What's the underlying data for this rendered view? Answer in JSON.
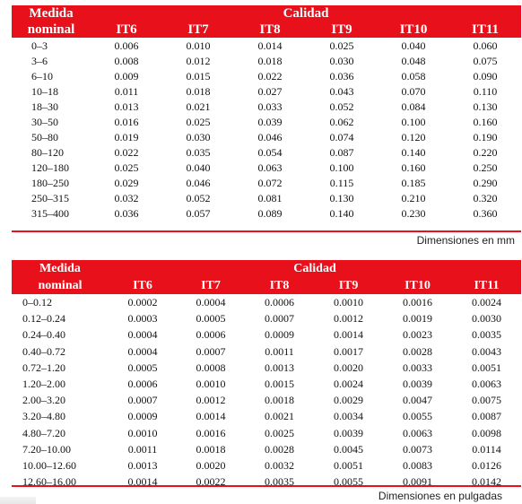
{
  "mm_table": {
    "header_medida": "Medida",
    "header_nominal": "nominal",
    "header_calidad": "Calidad",
    "grades": [
      "IT6",
      "IT7",
      "IT8",
      "IT9",
      "IT10",
      "IT11"
    ],
    "rows": [
      [
        "0–3",
        "0.006",
        "0.010",
        "0.014",
        "0.025",
        "0.040",
        "0.060"
      ],
      [
        "3–6",
        "0.008",
        "0.012",
        "0.018",
        "0.030",
        "0.048",
        "0.075"
      ],
      [
        "6–10",
        "0.009",
        "0.015",
        "0.022",
        "0.036",
        "0.058",
        "0.090"
      ],
      [
        "10–18",
        "0.011",
        "0.018",
        "0.027",
        "0.043",
        "0.070",
        "0.110"
      ],
      [
        "18–30",
        "0.013",
        "0.021",
        "0.033",
        "0.052",
        "0.084",
        "0.130"
      ],
      [
        "30–50",
        "0.016",
        "0.025",
        "0.039",
        "0.062",
        "0.100",
        "0.160"
      ],
      [
        "50–80",
        "0.019",
        "0.030",
        "0.046",
        "0.074",
        "0.120",
        "0.190"
      ],
      [
        "80–120",
        "0.022",
        "0.035",
        "0.054",
        "0.087",
        "0.140",
        "0.220"
      ],
      [
        "120–180",
        "0.025",
        "0.040",
        "0.063",
        "0.100",
        "0.160",
        "0.250"
      ],
      [
        "180–250",
        "0.029",
        "0.046",
        "0.072",
        "0.115",
        "0.185",
        "0.290"
      ],
      [
        "250–315",
        "0.032",
        "0.052",
        "0.081",
        "0.130",
        "0.210",
        "0.320"
      ],
      [
        "315–400",
        "0.036",
        "0.057",
        "0.089",
        "0.140",
        "0.230",
        "0.360"
      ]
    ],
    "units_caption": "Dimensiones en mm"
  },
  "in_table": {
    "header_medida": "Medida",
    "header_nominal": "nominal",
    "header_calidad": "Calidad",
    "grades": [
      "IT6",
      "IT7",
      "IT8",
      "IT9",
      "IT10",
      "IT11"
    ],
    "rows": [
      [
        "0–0.12",
        "0.0002",
        "0.0004",
        "0.0006",
        "0.0010",
        "0.0016",
        "0.0024"
      ],
      [
        "0.12–0.24",
        "0.0003",
        "0.0005",
        "0.0007",
        "0.0012",
        "0.0019",
        "0.0030"
      ],
      [
        "0.24–0.40",
        "0.0004",
        "0.0006",
        "0.0009",
        "0.0014",
        "0.0023",
        "0.0035"
      ],
      [
        "0.40–0.72",
        "0.0004",
        "0.0007",
        "0.0011",
        "0.0017",
        "0.0028",
        "0.0043"
      ],
      [
        "0.72–1.20",
        "0.0005",
        "0.0008",
        "0.0013",
        "0.0020",
        "0.0033",
        "0.0051"
      ],
      [
        "1.20–2.00",
        "0.0006",
        "0.0010",
        "0.0015",
        "0.0024",
        "0.0039",
        "0.0063"
      ],
      [
        "2.00–3.20",
        "0.0007",
        "0.0012",
        "0.0018",
        "0.0029",
        "0.0047",
        "0.0075"
      ],
      [
        "3.20–4.80",
        "0.0009",
        "0.0014",
        "0.0021",
        "0.0034",
        "0.0055",
        "0.0087"
      ],
      [
        "4.80–7.20",
        "0.0010",
        "0.0016",
        "0.0025",
        "0.0039",
        "0.0063",
        "0.0098"
      ],
      [
        "7.20–10.00",
        "0.0011",
        "0.0018",
        "0.0028",
        "0.0045",
        "0.0073",
        "0.0114"
      ],
      [
        "10.00–12.60",
        "0.0013",
        "0.0020",
        "0.0032",
        "0.0051",
        "0.0083",
        "0.0126"
      ],
      [
        "12.60–16.00",
        "0.0014",
        "0.0022",
        "0.0035",
        "0.0055",
        "0.0091",
        "0.0142"
      ]
    ],
    "units_caption": "Dimensiones en pulgadas"
  },
  "accent_color": "#e8101a"
}
